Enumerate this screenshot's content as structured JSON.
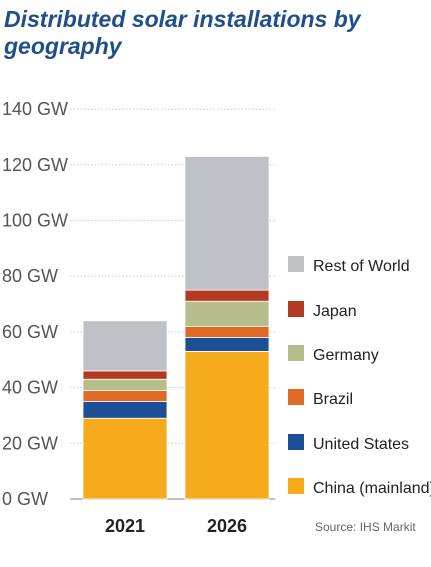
{
  "chart_data": {
    "type": "bar",
    "stacked": true,
    "title": "Distributed solar installations by geography",
    "categories": [
      "2021",
      "2026"
    ],
    "y_ticks": [
      "0 GW",
      "20 GW",
      "40 GW",
      "60 GW",
      "80 GW",
      "100 GW",
      "120 GW",
      "140 GW"
    ],
    "ylim": [
      0,
      140
    ],
    "grid": true,
    "legend_position": "right",
    "series": [
      {
        "name": "China (mainland)",
        "color": "#f5ab1b",
        "values": [
          29,
          53
        ]
      },
      {
        "name": "United States",
        "color": "#1d4f97",
        "values": [
          6,
          5
        ]
      },
      {
        "name": "Brazil",
        "color": "#e06a24",
        "values": [
          4,
          4
        ]
      },
      {
        "name": "Germany",
        "color": "#b7bc8b",
        "values": [
          4,
          9
        ]
      },
      {
        "name": "Japan",
        "color": "#b53a23",
        "values": [
          3,
          4
        ]
      },
      {
        "name": "Rest of World",
        "color": "#bec2c7",
        "values": [
          18,
          48
        ]
      }
    ],
    "source": "Source: IHS Markit"
  }
}
